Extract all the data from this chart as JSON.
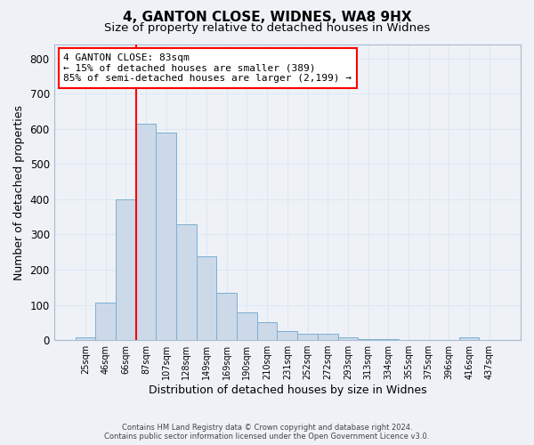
{
  "title1": "4, GANTON CLOSE, WIDNES, WA8 9HX",
  "title2": "Size of property relative to detached houses in Widnes",
  "xlabel": "Distribution of detached houses by size in Widnes",
  "ylabel": "Number of detached properties",
  "bar_labels": [
    "25sqm",
    "46sqm",
    "66sqm",
    "87sqm",
    "107sqm",
    "128sqm",
    "149sqm",
    "169sqm",
    "190sqm",
    "210sqm",
    "231sqm",
    "252sqm",
    "272sqm",
    "293sqm",
    "313sqm",
    "334sqm",
    "355sqm",
    "375sqm",
    "396sqm",
    "416sqm",
    "437sqm"
  ],
  "bar_values": [
    7,
    106,
    400,
    615,
    590,
    328,
    237,
    134,
    78,
    52,
    25,
    17,
    18,
    9,
    4,
    2,
    0,
    0,
    0,
    9,
    0
  ],
  "bar_color": "#ccd9e8",
  "bar_edge_color": "#7bafd4",
  "vline_x_index": 3,
  "vline_color": "red",
  "annotation_text": "4 GANTON CLOSE: 83sqm\n← 15% of detached houses are smaller (389)\n85% of semi-detached houses are larger (2,199) →",
  "annotation_box_color": "white",
  "annotation_box_edge_color": "red",
  "ylim": [
    0,
    840
  ],
  "yticks": [
    0,
    100,
    200,
    300,
    400,
    500,
    600,
    700,
    800
  ],
  "footer_line1": "Contains HM Land Registry data © Crown copyright and database right 2024.",
  "footer_line2": "Contains public sector information licensed under the Open Government Licence v3.0.",
  "bg_color": "#eef2f7",
  "grid_color": "#dce8f5",
  "title1_fontsize": 11,
  "title2_fontsize": 9.5,
  "xlabel_fontsize": 9,
  "ylabel_fontsize": 9,
  "annotation_fontsize": 8
}
